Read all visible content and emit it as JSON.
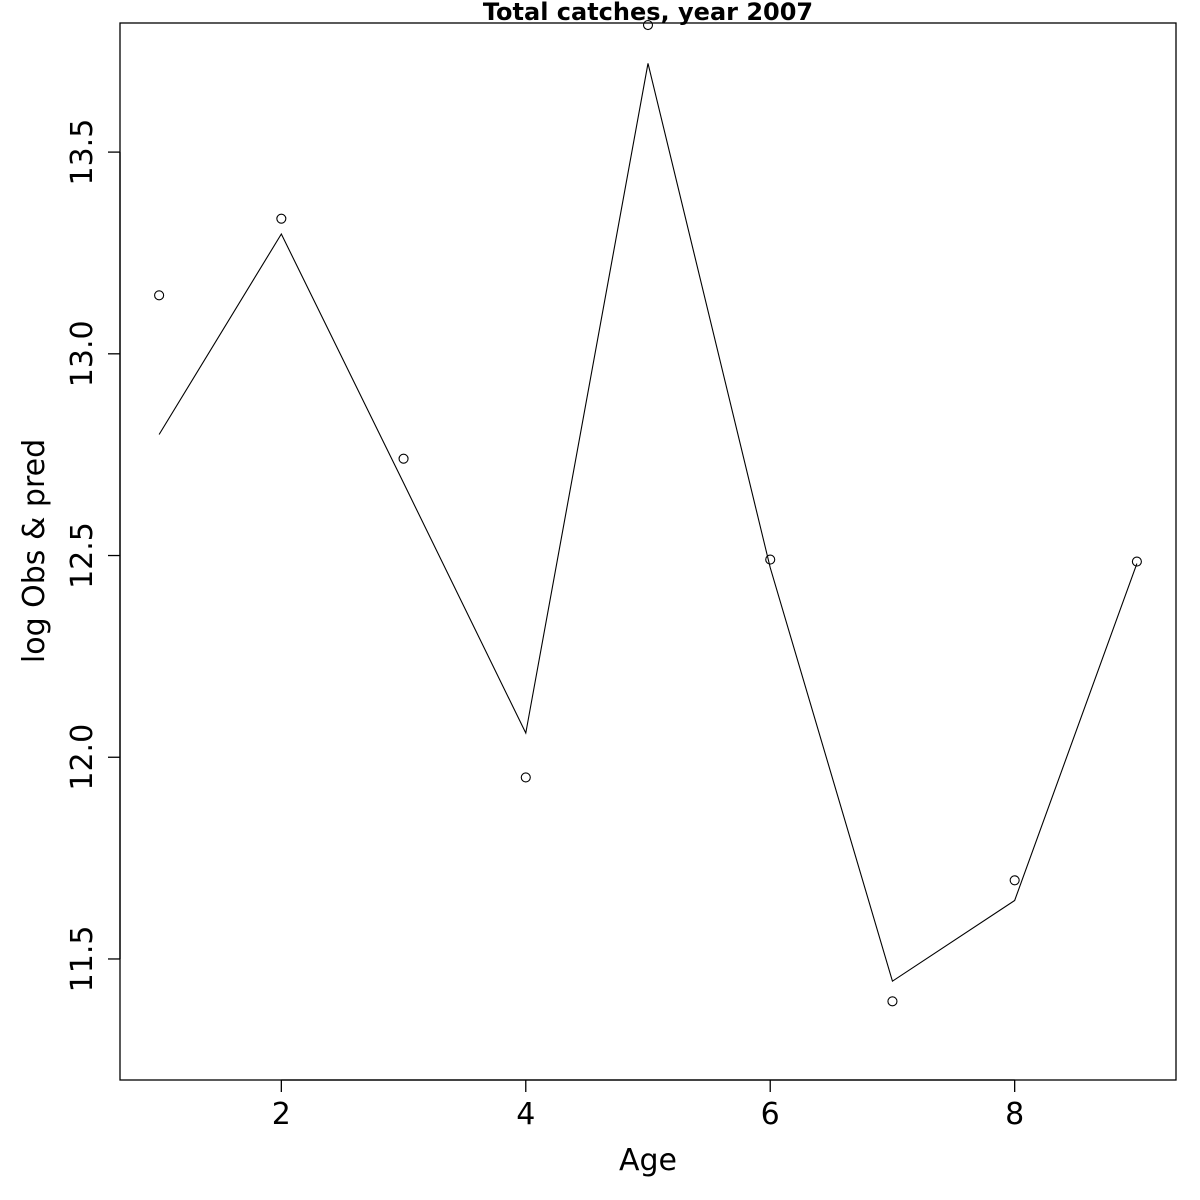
{
  "chart_data": {
    "type": "line",
    "title": "Total catches, year 2007",
    "xlabel": "Age",
    "ylabel": "log Obs & pred",
    "x": [
      1,
      2,
      3,
      4,
      5,
      6,
      7,
      8,
      9
    ],
    "xlim": [
      0.68,
      9.32
    ],
    "ylim": [
      11.2,
      13.82
    ],
    "x_ticks": [
      2,
      4,
      6,
      8
    ],
    "y_ticks": [
      11.5,
      12.0,
      12.5,
      13.0,
      13.5
    ],
    "x_tick_labels": [
      "2",
      "4",
      "6",
      "8"
    ],
    "y_tick_labels": [
      "11.5",
      "12.0",
      "12.5",
      "13.0",
      "13.5"
    ],
    "grid": false,
    "series": [
      {
        "style": "points",
        "values": [
          13.145,
          13.335,
          12.74,
          11.95,
          13.815,
          12.49,
          11.395,
          11.695,
          12.485
        ]
      },
      {
        "style": "line",
        "values": [
          12.8,
          13.297,
          12.68,
          12.06,
          13.72,
          12.47,
          11.445,
          11.645,
          12.48
        ]
      }
    ]
  }
}
